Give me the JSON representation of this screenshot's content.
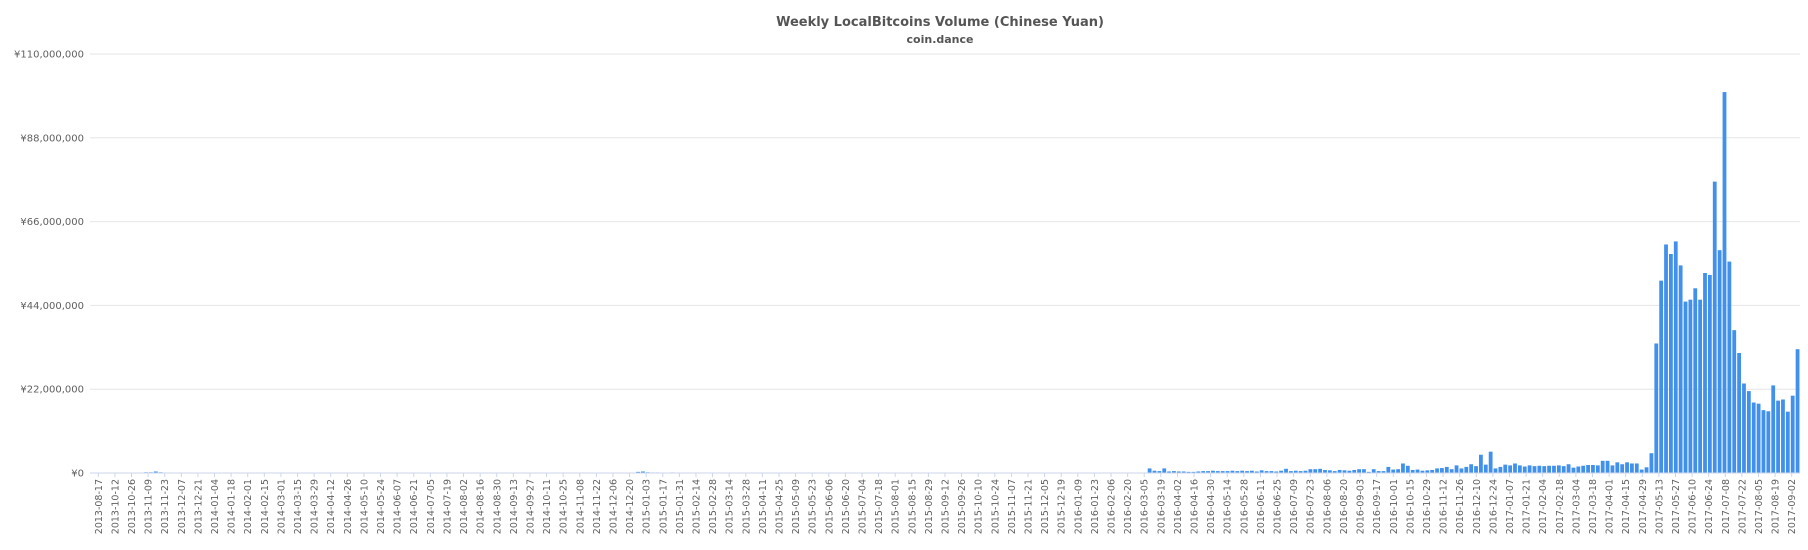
{
  "chart_data": {
    "type": "bar",
    "title": "Weekly LocalBitcoins Volume (Chinese Yuan)",
    "subtitle": "coin.dance",
    "xlabel": "",
    "ylabel": "",
    "ylim": [
      0,
      110000000
    ],
    "yticks": [
      0,
      22000000,
      44000000,
      66000000,
      88000000,
      110000000
    ],
    "ytick_labels": [
      "¥0",
      "¥22,000,000",
      "¥44,000,000",
      "¥66,000,000",
      "¥88,000,000",
      "¥110,000,000"
    ],
    "grid": true,
    "color": "#4191ec",
    "tick_labels": [
      "2013-08-17",
      "2013-10-12",
      "2013-10-26",
      "2013-11-09",
      "2013-11-23",
      "2013-12-07",
      "2013-12-21",
      "2014-01-04",
      "2014-01-18",
      "2014-02-01",
      "2014-02-15",
      "2014-03-01",
      "2014-03-15",
      "2014-03-29",
      "2014-04-12",
      "2014-04-26",
      "2014-05-10",
      "2014-05-24",
      "2014-06-07",
      "2014-06-21",
      "2014-07-05",
      "2014-07-19",
      "2014-08-02",
      "2014-08-16",
      "2014-08-30",
      "2014-09-13",
      "2014-09-27",
      "2014-10-11",
      "2014-10-25",
      "2014-11-08",
      "2014-11-22",
      "2014-12-06",
      "2014-12-20",
      "2015-01-03",
      "2015-01-17",
      "2015-01-31",
      "2015-02-14",
      "2015-02-28",
      "2015-03-14",
      "2015-03-28",
      "2015-04-11",
      "2015-04-25",
      "2015-05-09",
      "2015-05-23",
      "2015-06-06",
      "2015-06-20",
      "2015-07-04",
      "2015-07-18",
      "2015-08-01",
      "2015-08-15",
      "2015-08-29",
      "2015-09-12",
      "2015-09-26",
      "2015-10-10",
      "2015-10-24",
      "2015-11-07",
      "2015-11-21",
      "2015-12-05",
      "2015-12-19",
      "2016-01-09",
      "2016-01-23",
      "2016-02-06",
      "2016-02-20",
      "2016-03-05",
      "2016-03-19",
      "2016-04-02",
      "2016-04-16",
      "2016-04-30",
      "2016-05-14",
      "2016-05-28",
      "2016-06-11",
      "2016-06-25",
      "2016-07-09",
      "2016-07-23",
      "2016-08-06",
      "2016-08-20",
      "2016-09-03",
      "2016-09-17",
      "2016-10-01",
      "2016-10-15",
      "2016-10-29",
      "2016-11-12",
      "2016-11-26",
      "2016-12-10",
      "2016-12-24",
      "2017-01-07",
      "2017-01-21",
      "2017-02-04",
      "2017-02-18",
      "2017-03-04",
      "2017-03-18",
      "2017-04-01",
      "2017-04-15",
      "2017-04-29",
      "2017-05-13",
      "2017-05-27",
      "2017-06-10",
      "2017-06-24",
      "2017-07-08",
      "2017-07-22",
      "2017-08-05",
      "2017-08-19",
      "2017-09-02"
    ],
    "values": [
      0,
      0,
      0,
      0,
      0,
      0,
      50000,
      0,
      50000,
      0,
      100000,
      200000,
      200000,
      400000,
      200000,
      0,
      0,
      0,
      0,
      0,
      0,
      0,
      0,
      0,
      0,
      0,
      0,
      0,
      0,
      0,
      0,
      0,
      0,
      0,
      0,
      0,
      0,
      0,
      0,
      0,
      0,
      0,
      0,
      0,
      0,
      0,
      0,
      0,
      0,
      0,
      0,
      0,
      0,
      0,
      0,
      0,
      0,
      0,
      0,
      0,
      0,
      0,
      0,
      0,
      0,
      0,
      0,
      0,
      0,
      0,
      0,
      0,
      0,
      0,
      0,
      0,
      0,
      0,
      0,
      0,
      0,
      0,
      0,
      0,
      0,
      0,
      0,
      0,
      0,
      0,
      0,
      0,
      0,
      0,
      0,
      0,
      0,
      0,
      0,
      0,
      0,
      0,
      0,
      0,
      0,
      0,
      0,
      0,
      0,
      0,
      0,
      0,
      300000,
      400000,
      200000,
      150000,
      150000,
      100000,
      100000,
      150000,
      0,
      0,
      0,
      0,
      0,
      0,
      0,
      0,
      0,
      0,
      0,
      0,
      0,
      0,
      0,
      0,
      0,
      0,
      0,
      0,
      0,
      0,
      0,
      0,
      0,
      0,
      0,
      0,
      0,
      0,
      0,
      0,
      0,
      0,
      0,
      0,
      0,
      0,
      0,
      0,
      0,
      0,
      0,
      0,
      0,
      0,
      0,
      0,
      0,
      0,
      0,
      0,
      0,
      0,
      0,
      0,
      0,
      0,
      0,
      0,
      0,
      0,
      0,
      0,
      0,
      0,
      0,
      0,
      0,
      0,
      0,
      0,
      0,
      0,
      0,
      0,
      0,
      0,
      0,
      0,
      0,
      0,
      0,
      0,
      0,
      0,
      0,
      0,
      0,
      0,
      0,
      0,
      0,
      0,
      0,
      0,
      0,
      1200000,
      600000,
      500000,
      1200000,
      400000,
      500000,
      400000,
      400000,
      300000,
      300000,
      400000,
      500000,
      500000,
      600000,
      500000,
      500000,
      500000,
      600000,
      500000,
      600000,
      500000,
      600000,
      400000,
      700000,
      500000,
      500000,
      400000,
      600000,
      1100000,
      500000,
      600000,
      500000,
      600000,
      1000000,
      1000000,
      1100000,
      800000,
      700000,
      500000,
      800000,
      700000,
      600000,
      800000,
      1000000,
      1000000,
      300000,
      1000000,
      500000,
      500000,
      1600000,
      900000,
      1000000,
      2500000,
      1900000,
      800000,
      900000,
      600000,
      700000,
      800000,
      1200000,
      1300000,
      1600000,
      1000000,
      2000000,
      1200000,
      1600000,
      2300000,
      1800000,
      4800000,
      2200000,
      5600000,
      1200000,
      1600000,
      2200000,
      2000000,
      2500000,
      2000000,
      1700000,
      2000000,
      1800000,
      1900000,
      1800000,
      1900000,
      1900000,
      2000000,
      1800000,
      2300000,
      1400000,
      1700000,
      1900000,
      2100000,
      2100000,
      2000000,
      3200000,
      3200000,
      2000000,
      2800000,
      2300000,
      2800000,
      2500000,
      2500000,
      900000,
      1500000,
      5200000,
      34000000,
      50500000,
      60000000,
      57500000,
      60800000,
      54500000,
      45000000,
      45500000,
      48500000,
      45500000,
      52500000,
      52000000,
      76500000,
      58500000,
      100000000,
      55500000,
      37500000,
      31500000,
      23500000,
      21500000,
      18500000,
      18200000,
      16500000,
      16200000,
      23000000,
      19000000,
      19300000,
      16100000,
      20300000,
      32500000
    ]
  }
}
